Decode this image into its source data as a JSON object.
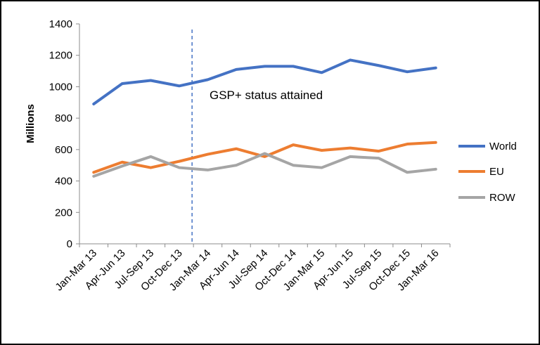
{
  "chart_data": {
    "type": "line",
    "categories": [
      "Jan-Mar 13",
      "Apr-Jun 13",
      "Jul-Sep 13",
      "Oct-Dec 13",
      "Jan-Mar 14",
      "Apr-Jun 14",
      "Jul-Sep 14",
      "Oct-Dec 14",
      "Jan-Mar 15",
      "Apr-Jun 15",
      "Jul-Sep 15",
      "Oct-Dec 15",
      "Jan-Mar 16"
    ],
    "series": [
      {
        "name": "World",
        "color": "#4472c4",
        "values": [
          890,
          1020,
          1040,
          1005,
          1045,
          1110,
          1130,
          1130,
          1090,
          1170,
          1135,
          1095,
          1120
        ]
      },
      {
        "name": "EU",
        "color": "#ed7d31",
        "values": [
          455,
          520,
          485,
          525,
          570,
          605,
          555,
          630,
          595,
          610,
          590,
          635,
          645
        ]
      },
      {
        "name": "ROW",
        "color": "#a5a5a5",
        "values": [
          430,
          495,
          555,
          485,
          470,
          500,
          575,
          500,
          485,
          555,
          545,
          455,
          475
        ]
      }
    ],
    "ylabel": "Millions",
    "ylim": [
      0,
      1400
    ],
    "yticks": [
      0,
      200,
      400,
      600,
      800,
      1000,
      1200,
      1400
    ],
    "grid": false,
    "legend_position": "right",
    "annotation": {
      "text": "GSP+ status attained",
      "marker": "dashed vertical line between Oct-Dec 13 and Jan-Mar 14"
    }
  }
}
